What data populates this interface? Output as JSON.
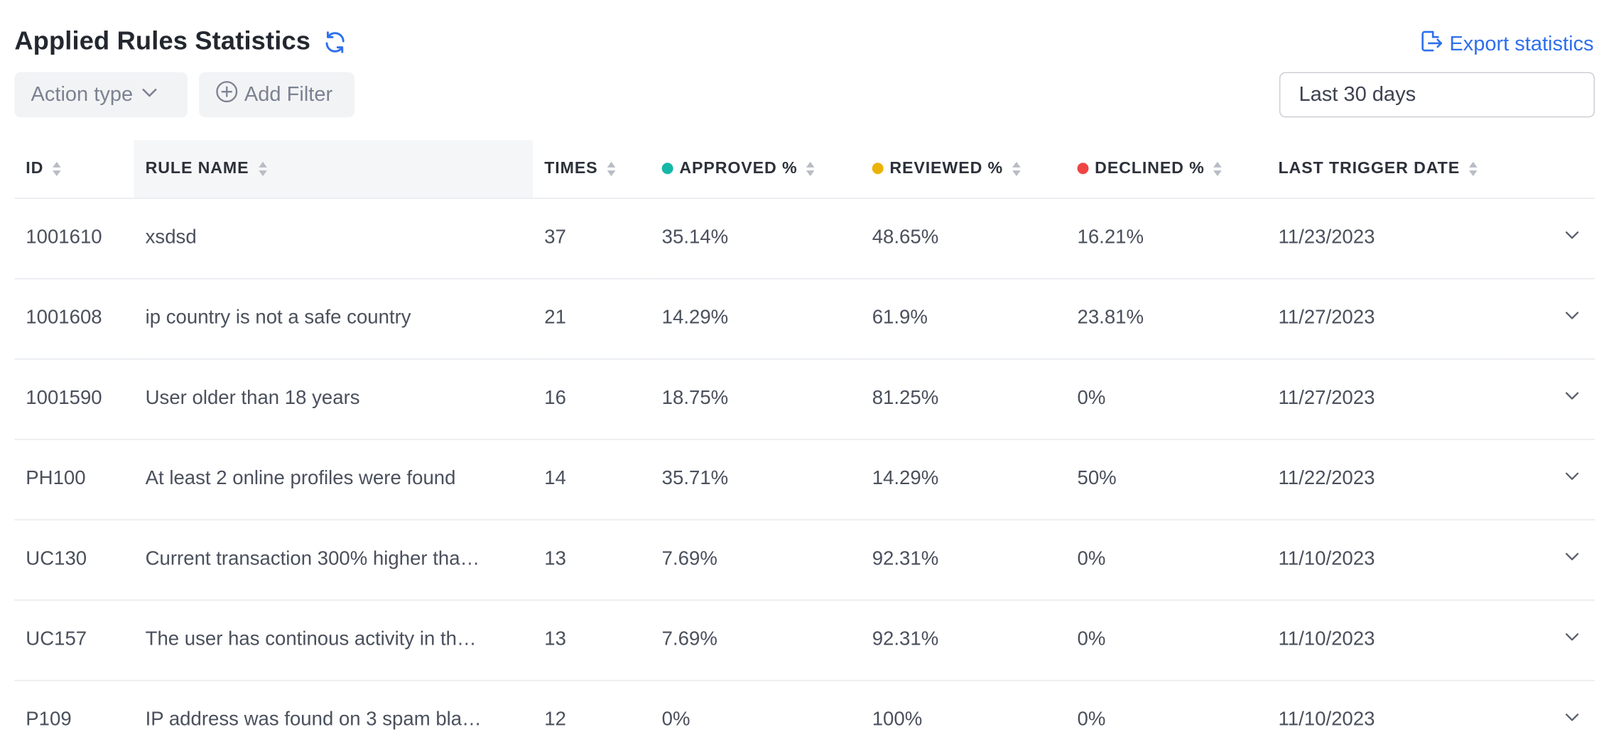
{
  "header": {
    "title": "Applied Rules Statistics",
    "export_label": "Export statistics"
  },
  "filters": {
    "action_type_label": "Action type",
    "add_filter_label": "Add Filter",
    "date_range_value": "Last 30 days"
  },
  "colors": {
    "accent": "#2f6fed",
    "approved": "#14b8a6",
    "reviewed": "#eab308",
    "declined": "#ef4444"
  },
  "table": {
    "columns": [
      "ID",
      "RULE NAME",
      "TIMES",
      "APPROVED %",
      "REVIEWED %",
      "DECLINED %",
      "LAST TRIGGER DATE"
    ],
    "rows": [
      {
        "id": "1001610",
        "name": "xsdsd",
        "times": "37",
        "approved": "35.14%",
        "reviewed": "48.65%",
        "declined": "16.21%",
        "date": "11/23/2023"
      },
      {
        "id": "1001608",
        "name": "ip country is not a safe country",
        "times": "21",
        "approved": "14.29%",
        "reviewed": "61.9%",
        "declined": "23.81%",
        "date": "11/27/2023"
      },
      {
        "id": "1001590",
        "name": "User older than 18 years",
        "times": "16",
        "approved": "18.75%",
        "reviewed": "81.25%",
        "declined": "0%",
        "date": "11/27/2023"
      },
      {
        "id": "PH100",
        "name": "At least 2 online profiles were found",
        "times": "14",
        "approved": "35.71%",
        "reviewed": "14.29%",
        "declined": "50%",
        "date": "11/22/2023"
      },
      {
        "id": "UC130",
        "name": "Current transaction 300% higher tha…",
        "times": "13",
        "approved": "7.69%",
        "reviewed": "92.31%",
        "declined": "0%",
        "date": "11/10/2023"
      },
      {
        "id": "UC157",
        "name": "The user has continous activity in th…",
        "times": "13",
        "approved": "7.69%",
        "reviewed": "92.31%",
        "declined": "0%",
        "date": "11/10/2023"
      },
      {
        "id": "P109",
        "name": "IP address was found on 3 spam bla…",
        "times": "12",
        "approved": "0%",
        "reviewed": "100%",
        "declined": "0%",
        "date": "11/10/2023"
      }
    ]
  }
}
